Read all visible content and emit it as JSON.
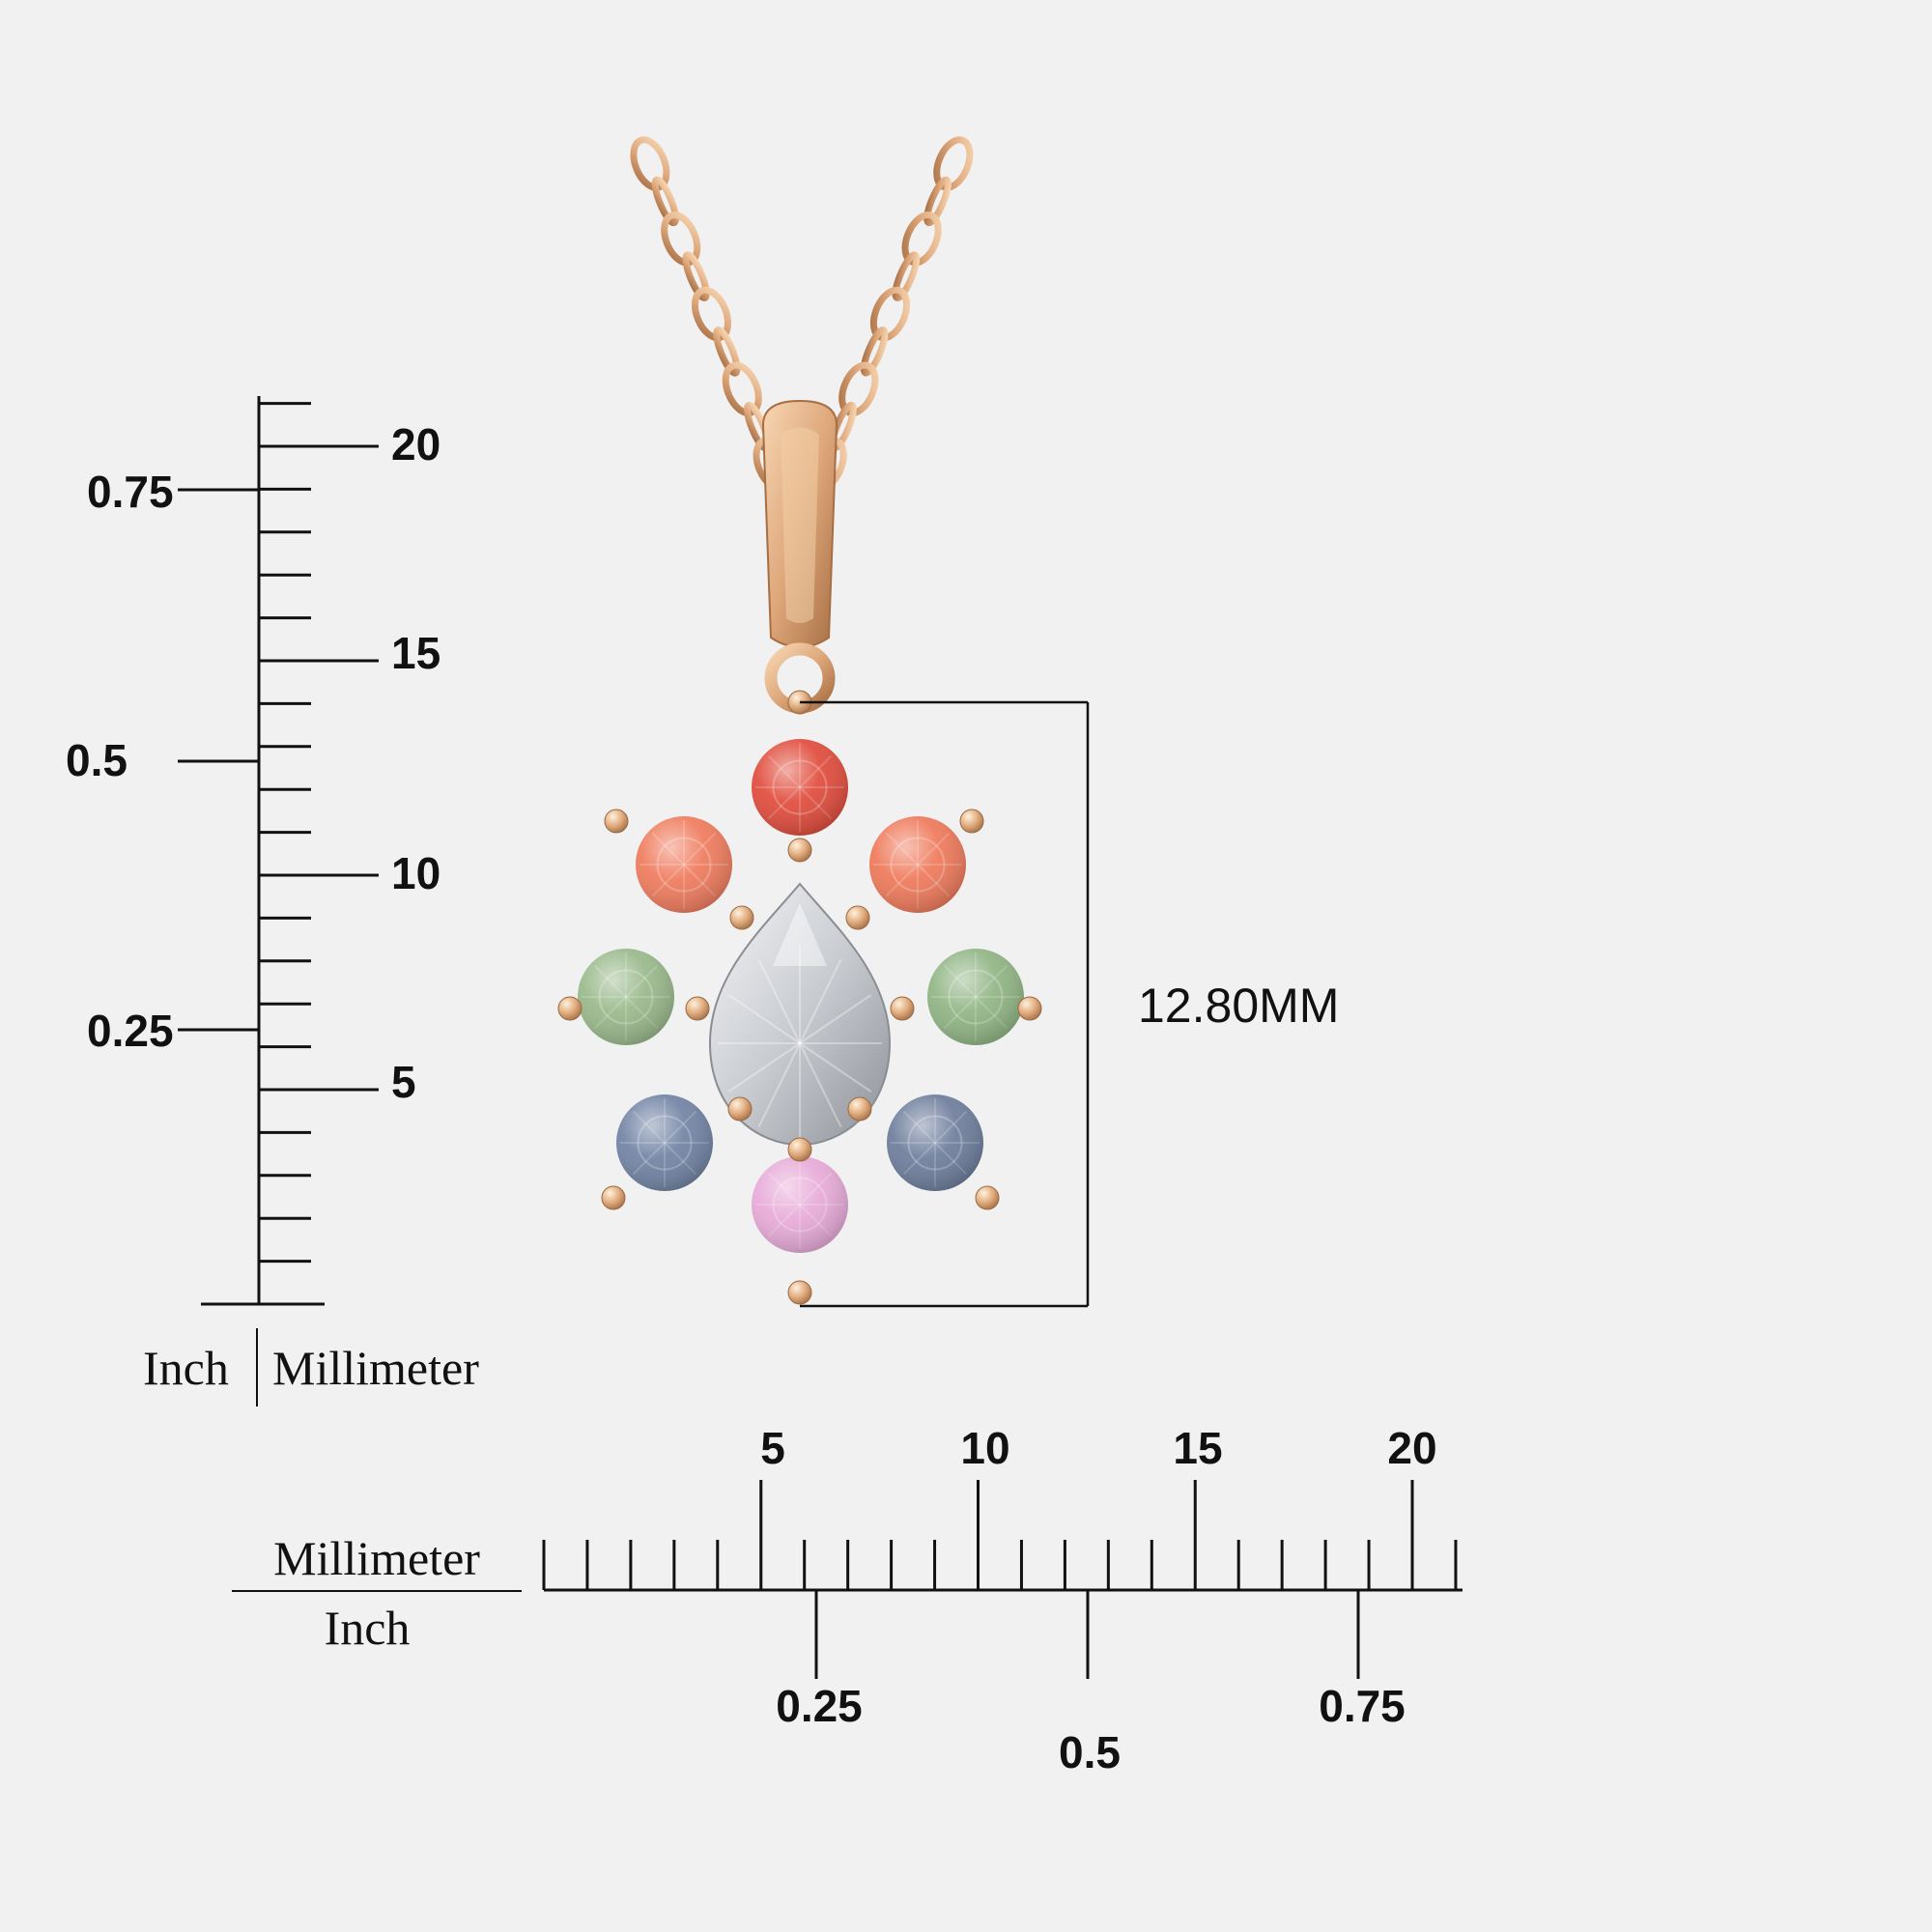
{
  "colors": {
    "background": "#f1f1f1",
    "ink": "#111111",
    "gold": "#e0ad7e",
    "gold_dark": "#a66e43",
    "gold_light": "#f7d6b3"
  },
  "dimension": {
    "label": "12.80MM"
  },
  "vertical_scale": {
    "unit_left": "Inch",
    "unit_right": "Millimeter",
    "mm_labels": [
      "20",
      "15",
      "10",
      "5"
    ],
    "inch_labels": [
      "0.75",
      "0.5",
      "0.25"
    ]
  },
  "horizontal_scale": {
    "unit_top": "Millimeter",
    "unit_bottom": "Inch",
    "mm_labels": [
      "5",
      "10",
      "15",
      "20"
    ],
    "inch_labels": [
      "0.25",
      "0.5",
      "0.75"
    ]
  },
  "gemstones": [
    {
      "name": "top-center",
      "color": "#e04a3a"
    },
    {
      "name": "upper-left",
      "color": "#ef7a5c"
    },
    {
      "name": "upper-right",
      "color": "#ee7859"
    },
    {
      "name": "middle-left",
      "color": "#98b88a"
    },
    {
      "name": "middle-right",
      "color": "#8fb483"
    },
    {
      "name": "lower-left",
      "color": "#7082a3"
    },
    {
      "name": "lower-right",
      "color": "#6c7c9b"
    },
    {
      "name": "bottom-center",
      "color": "#e7a9d8"
    },
    {
      "name": "center-pear",
      "color": "#d8dadd"
    }
  ]
}
